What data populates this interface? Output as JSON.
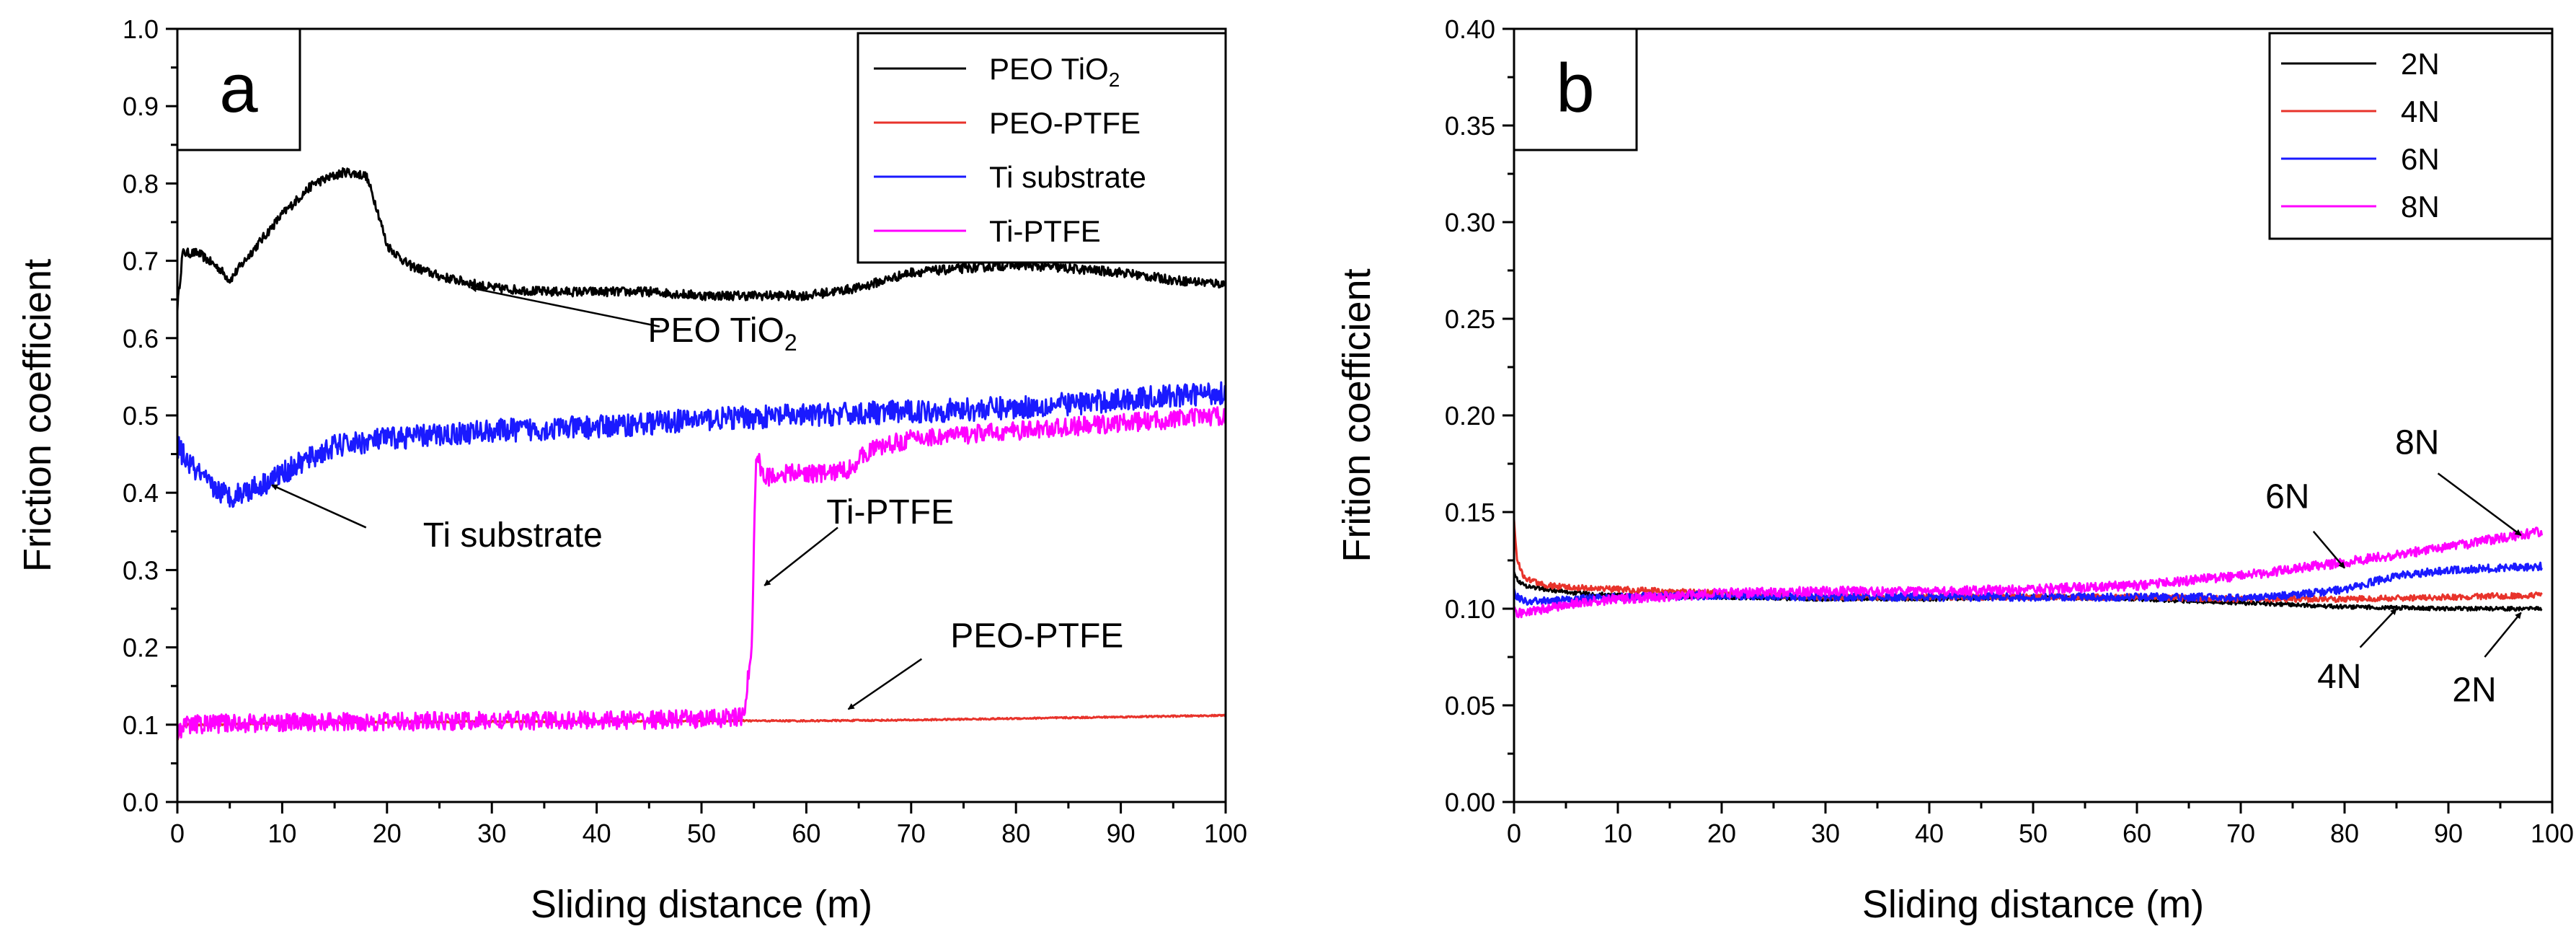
{
  "chart_data": [
    {
      "type": "line",
      "panel_label": "a",
      "xlabel": "Sliding distance (m)",
      "ylabel": "Friction coefficient",
      "xlim": [
        0,
        100
      ],
      "ylim": [
        0.0,
        1.0
      ],
      "x_ticks": [
        0,
        10,
        20,
        30,
        40,
        50,
        60,
        70,
        80,
        90,
        100
      ],
      "x_tick_labels": [
        "0",
        "10",
        "20",
        "30",
        "40",
        "50",
        "60",
        "70",
        "80",
        "90",
        "100"
      ],
      "y_ticks": [
        0.0,
        0.1,
        0.2,
        0.3,
        0.4,
        0.5,
        0.6,
        0.7,
        0.8,
        0.9,
        1.0
      ],
      "y_tick_labels": [
        "0.0",
        "0.1",
        "0.2",
        "0.3",
        "0.4",
        "0.5",
        "0.6",
        "0.7",
        "0.8",
        "0.9",
        "1.0"
      ],
      "legend_position": "top-right",
      "series": [
        {
          "name": "PEO TiO2",
          "legend_main": "PEO TiO",
          "legend_sub": "2",
          "color": "#000000",
          "x": [
            0,
            0.5,
            2,
            4,
            5,
            7,
            10,
            13,
            16,
            18,
            19,
            20,
            22,
            25,
            30,
            35,
            40,
            45,
            50,
            55,
            60,
            65,
            70,
            75,
            80,
            85,
            90,
            95,
            100
          ],
          "y": [
            0.64,
            0.71,
            0.71,
            0.69,
            0.675,
            0.71,
            0.76,
            0.8,
            0.815,
            0.81,
            0.77,
            0.72,
            0.695,
            0.68,
            0.665,
            0.66,
            0.66,
            0.66,
            0.655,
            0.655,
            0.655,
            0.665,
            0.685,
            0.69,
            0.695,
            0.69,
            0.685,
            0.675,
            0.67
          ],
          "noise": 0.006
        },
        {
          "name": "PEO-PTFE",
          "color": "#e8332b",
          "x": [
            0,
            0.3,
            1,
            3,
            10,
            20,
            30,
            40,
            50,
            60,
            70,
            80,
            90,
            100
          ],
          "y": [
            0.08,
            0.095,
            0.1,
            0.1,
            0.102,
            0.103,
            0.104,
            0.104,
            0.105,
            0.105,
            0.106,
            0.108,
            0.11,
            0.112
          ],
          "noise": 0.001
        },
        {
          "name": "Ti substrate",
          "color": "#1a1aff",
          "x": [
            0,
            1,
            3,
            5,
            8,
            12,
            15,
            20,
            25,
            30,
            40,
            50,
            60,
            70,
            80,
            90,
            100
          ],
          "y": [
            0.46,
            0.44,
            0.41,
            0.395,
            0.41,
            0.44,
            0.46,
            0.47,
            0.475,
            0.48,
            0.485,
            0.495,
            0.5,
            0.505,
            0.51,
            0.52,
            0.53
          ],
          "noise": 0.015
        },
        {
          "name": "Ti-PTFE",
          "color": "#ff00ff",
          "x": [
            0,
            0.3,
            1,
            5,
            10,
            20,
            30,
            40,
            50,
            54,
            54.8,
            55.2,
            56,
            58,
            62,
            64,
            66,
            70,
            75,
            80,
            85,
            90,
            95,
            100
          ],
          "y": [
            0.085,
            0.095,
            0.1,
            0.102,
            0.103,
            0.104,
            0.105,
            0.106,
            0.107,
            0.11,
            0.2,
            0.45,
            0.42,
            0.425,
            0.425,
            0.43,
            0.455,
            0.47,
            0.475,
            0.48,
            0.485,
            0.49,
            0.495,
            0.5
          ],
          "noise": 0.012
        }
      ],
      "annotations": [
        {
          "label": "PEO TiO",
          "label_sub": "2",
          "text_x": 52,
          "text_y": 0.595,
          "arrow_from_x": 46,
          "arrow_from_y": 0.615,
          "arrow_to_x": 28,
          "arrow_to_y": 0.665
        },
        {
          "label": "Ti substrate",
          "text_x": 32,
          "text_y": 0.33,
          "arrow_from_x": 18,
          "arrow_from_y": 0.355,
          "arrow_to_x": 9,
          "arrow_to_y": 0.41
        },
        {
          "label": "Ti-PTFE",
          "text_x": 68,
          "text_y": 0.36,
          "arrow_from_x": 63,
          "arrow_from_y": 0.355,
          "arrow_to_x": 56,
          "arrow_to_y": 0.28
        },
        {
          "label": "PEO-PTFE",
          "text_x": 82,
          "text_y": 0.2,
          "arrow_from_x": 71,
          "arrow_from_y": 0.185,
          "arrow_to_x": 64,
          "arrow_to_y": 0.12
        }
      ]
    },
    {
      "type": "line",
      "panel_label": "b",
      "xlabel": "Sliding distance (m)",
      "ylabel": "Frition coefficient",
      "xlim": [
        0,
        100
      ],
      "ylim": [
        0.0,
        0.4
      ],
      "x_ticks": [
        0,
        10,
        20,
        30,
        40,
        50,
        60,
        70,
        80,
        90,
        100
      ],
      "x_tick_labels": [
        "0",
        "10",
        "20",
        "30",
        "40",
        "50",
        "60",
        "70",
        "80",
        "90",
        "100"
      ],
      "y_ticks": [
        0.0,
        0.05,
        0.1,
        0.15,
        0.2,
        0.25,
        0.3,
        0.35,
        0.4
      ],
      "y_tick_labels": [
        "0.00",
        "0.05",
        "0.10",
        "0.15",
        "0.20",
        "0.25",
        "0.30",
        "0.35",
        "0.40"
      ],
      "legend_position": "top-right",
      "series": [
        {
          "name": "2N",
          "color": "#000000",
          "x": [
            0,
            0.3,
            1,
            3,
            6,
            10,
            20,
            30,
            40,
            50,
            60,
            70,
            80,
            90,
            99
          ],
          "y": [
            0.12,
            0.115,
            0.112,
            0.11,
            0.108,
            0.107,
            0.106,
            0.105,
            0.105,
            0.106,
            0.105,
            0.103,
            0.101,
            0.1,
            0.1
          ],
          "noise": 0.001
        },
        {
          "name": "4N",
          "color": "#e8332b",
          "x": [
            0,
            0.3,
            1,
            3,
            6,
            10,
            20,
            30,
            40,
            50,
            60,
            70,
            80,
            90,
            99
          ],
          "y": [
            0.145,
            0.125,
            0.116,
            0.112,
            0.111,
            0.11,
            0.108,
            0.106,
            0.106,
            0.106,
            0.106,
            0.105,
            0.105,
            0.106,
            0.107
          ],
          "noise": 0.0015
        },
        {
          "name": "6N",
          "color": "#1a1aff",
          "x": [
            0,
            0.3,
            1,
            3,
            6,
            10,
            20,
            30,
            40,
            50,
            60,
            70,
            75,
            80,
            85,
            90,
            99
          ],
          "y": [
            0.11,
            0.106,
            0.104,
            0.104,
            0.105,
            0.106,
            0.107,
            0.106,
            0.106,
            0.106,
            0.106,
            0.106,
            0.107,
            0.11,
            0.117,
            0.12,
            0.122
          ],
          "noise": 0.002
        },
        {
          "name": "8N",
          "color": "#ff00ff",
          "x": [
            0,
            0.3,
            1,
            3,
            6,
            10,
            20,
            30,
            40,
            50,
            60,
            70,
            80,
            90,
            99
          ],
          "y": [
            0.1,
            0.098,
            0.098,
            0.1,
            0.103,
            0.105,
            0.108,
            0.109,
            0.109,
            0.11,
            0.112,
            0.117,
            0.124,
            0.132,
            0.14
          ],
          "noise": 0.0025
        }
      ],
      "annotations": [
        {
          "label": "6N",
          "text_x": 74.5,
          "text_y": 0.152,
          "arrow_from_x": 77,
          "arrow_from_y": 0.14,
          "arrow_to_x": 80,
          "arrow_to_y": 0.121
        },
        {
          "label": "8N",
          "text_x": 87,
          "text_y": 0.18,
          "arrow_from_x": 89,
          "arrow_from_y": 0.17,
          "arrow_to_x": 97,
          "arrow_to_y": 0.138
        },
        {
          "label": "4N",
          "text_x": 79.5,
          "text_y": 0.059,
          "arrow_from_x": 81.5,
          "arrow_from_y": 0.08,
          "arrow_to_x": 85,
          "arrow_to_y": 0.1
        },
        {
          "label": "2N",
          "text_x": 92.5,
          "text_y": 0.052,
          "arrow_from_x": 93.5,
          "arrow_from_y": 0.075,
          "arrow_to_x": 97,
          "arrow_to_y": 0.098
        }
      ]
    }
  ]
}
